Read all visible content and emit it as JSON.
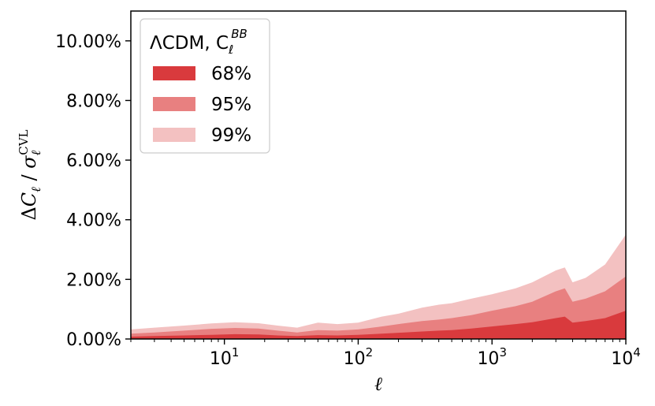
{
  "chart_data": {
    "type": "area",
    "xscale": "log",
    "xlim": [
      2,
      10000
    ],
    "ylim": [
      0,
      11
    ],
    "xlabel": "ℓ",
    "ylabel": "ΔC_ℓ / σ_ℓ^CVL",
    "xticks": [
      {
        "value": 10,
        "label_base": "10",
        "label_exp": "1"
      },
      {
        "value": 100,
        "label_base": "10",
        "label_exp": "2"
      },
      {
        "value": 1000,
        "label_base": "10",
        "label_exp": "3"
      },
      {
        "value": 10000,
        "label_base": "10",
        "label_exp": "4"
      }
    ],
    "yticks": [
      {
        "value": 0,
        "label": "0.00%"
      },
      {
        "value": 2,
        "label": "2.00%"
      },
      {
        "value": 4,
        "label": "4.00%"
      },
      {
        "value": 6,
        "label": "6.00%"
      },
      {
        "value": 8,
        "label": "8.00%"
      },
      {
        "value": 10,
        "label": "10.00%"
      }
    ],
    "legend": {
      "title_prefix": "ΛCDM, C",
      "title_sub": "ℓ",
      "title_sup": "BB",
      "placement": "upper-left"
    },
    "x": [
      2,
      3,
      5,
      8,
      12,
      18,
      25,
      35,
      50,
      70,
      100,
      150,
      200,
      300,
      400,
      500,
      700,
      1000,
      1500,
      2000,
      3000,
      3500,
      4000,
      5000,
      7000,
      10000
    ],
    "series": [
      {
        "name": "99%",
        "color": "#f3c1c1",
        "values": [
          0.32,
          0.38,
          0.45,
          0.52,
          0.56,
          0.53,
          0.45,
          0.38,
          0.55,
          0.5,
          0.55,
          0.75,
          0.85,
          1.05,
          1.15,
          1.2,
          1.35,
          1.5,
          1.7,
          1.9,
          2.3,
          2.4,
          1.9,
          2.05,
          2.5,
          3.5
        ]
      },
      {
        "name": "95%",
        "color": "#e88080",
        "values": [
          0.18,
          0.22,
          0.28,
          0.34,
          0.37,
          0.35,
          0.28,
          0.22,
          0.3,
          0.28,
          0.32,
          0.42,
          0.5,
          0.6,
          0.65,
          0.7,
          0.8,
          0.95,
          1.1,
          1.25,
          1.6,
          1.7,
          1.25,
          1.35,
          1.6,
          2.1
        ]
      },
      {
        "name": "68%",
        "color": "#d93a3d",
        "values": [
          0.08,
          0.1,
          0.12,
          0.14,
          0.16,
          0.15,
          0.12,
          0.1,
          0.13,
          0.12,
          0.14,
          0.18,
          0.21,
          0.25,
          0.28,
          0.3,
          0.35,
          0.42,
          0.5,
          0.56,
          0.7,
          0.75,
          0.55,
          0.6,
          0.7,
          0.95
        ]
      }
    ]
  }
}
